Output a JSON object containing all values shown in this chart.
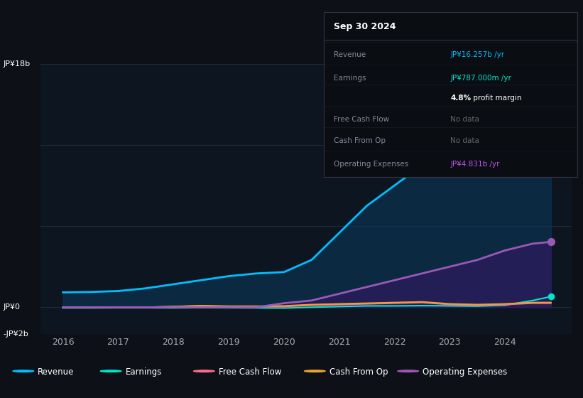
{
  "bg_color": "#0d1117",
  "chart_bg": "#0d1520",
  "grid_color": "#1e2d3d",
  "years": [
    2016,
    2016.5,
    2017,
    2017.5,
    2018,
    2018.5,
    2019,
    2019.5,
    2020,
    2020.5,
    2021,
    2021.5,
    2022,
    2022.5,
    2023,
    2023.5,
    2024,
    2024.5,
    2024.83
  ],
  "revenue": [
    1.1,
    1.13,
    1.2,
    1.4,
    1.7,
    2.0,
    2.3,
    2.5,
    2.6,
    3.5,
    5.5,
    7.5,
    9.0,
    10.5,
    12.0,
    13.5,
    15.0,
    16.0,
    16.257
  ],
  "earnings": [
    -0.05,
    -0.05,
    -0.04,
    -0.04,
    -0.05,
    -0.03,
    -0.04,
    -0.05,
    -0.06,
    0.0,
    0.05,
    0.1,
    0.1,
    0.12,
    0.1,
    0.08,
    0.15,
    0.5,
    0.787
  ],
  "free_cash": [
    0.0,
    0.0,
    0.0,
    0.0,
    0.05,
    0.1,
    0.05,
    0.05,
    0.05,
    0.15,
    0.2,
    0.25,
    0.3,
    0.35,
    0.2,
    0.15,
    0.2,
    0.3,
    0.3
  ],
  "cash_from_op": [
    0.0,
    0.0,
    0.0,
    0.0,
    0.05,
    0.12,
    0.08,
    0.08,
    0.1,
    0.2,
    0.25,
    0.3,
    0.35,
    0.4,
    0.25,
    0.2,
    0.25,
    0.35,
    0.35
  ],
  "op_expenses": [
    0.0,
    0.0,
    0.0,
    0.0,
    0.0,
    0.0,
    0.0,
    0.0,
    0.3,
    0.5,
    1.0,
    1.5,
    2.0,
    2.5,
    3.0,
    3.5,
    4.2,
    4.7,
    4.831
  ],
  "revenue_color": "#00bfff",
  "earnings_color": "#00e5cc",
  "free_cash_color": "#ff6b8a",
  "cash_from_op_color": "#f0a030",
  "op_expenses_color": "#9b59b6",
  "revenue_fill": "#0a3a5c",
  "op_expenses_fill": "#2d1b5e",
  "ylim_min": -2.0,
  "ylim_max": 18.0,
  "xlabel_years": [
    2016,
    2017,
    2018,
    2019,
    2020,
    2021,
    2022,
    2023,
    2024
  ],
  "legend_items": [
    "Revenue",
    "Earnings",
    "Free Cash Flow",
    "Cash From Op",
    "Operating Expenses"
  ],
  "legend_colors": [
    "#00bfff",
    "#00e5cc",
    "#ff6b8a",
    "#f0a030",
    "#9b59b6"
  ],
  "tooltip": {
    "title": "Sep 30 2024",
    "rows": [
      {
        "label": "Revenue",
        "value": "JP¥16.257b /yr",
        "value_color": "#00bfff"
      },
      {
        "label": "Earnings",
        "value": "JP¥787.000m /yr",
        "value_color": "#00e5cc"
      },
      {
        "label": "",
        "value": "4.8% profit margin",
        "value_color": "white",
        "bold_prefix": "4.8%"
      },
      {
        "label": "Free Cash Flow",
        "value": "No data",
        "value_color": "#666666"
      },
      {
        "label": "Cash From Op",
        "value": "No data",
        "value_color": "#666666"
      },
      {
        "label": "Operating Expenses",
        "value": "JP¥4.831b /yr",
        "value_color": "#bb55ee"
      }
    ]
  }
}
